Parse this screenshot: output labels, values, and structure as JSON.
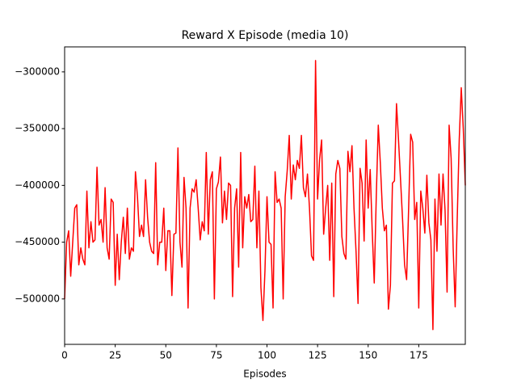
{
  "chart_data": {
    "type": "line",
    "title": "Reward X Episode (media 10)",
    "x_label": "Episodes",
    "color": "#ff0000",
    "x": [
      0,
      1,
      2,
      3,
      4,
      5,
      6,
      7,
      8,
      9,
      10,
      11,
      12,
      13,
      14,
      15,
      16,
      17,
      18,
      19,
      20,
      21,
      22,
      23,
      24,
      25,
      26,
      27,
      28,
      29,
      30,
      31,
      32,
      33,
      34,
      35,
      36,
      37,
      38,
      39,
      40,
      41,
      42,
      43,
      44,
      45,
      46,
      47,
      48,
      49,
      50,
      51,
      52,
      53,
      54,
      55,
      56,
      57,
      58,
      59,
      60,
      61,
      62,
      63,
      64,
      65,
      66,
      67,
      68,
      69,
      70,
      71,
      72,
      73,
      74,
      75,
      76,
      77,
      78,
      79,
      80,
      81,
      82,
      83,
      84,
      85,
      86,
      87,
      88,
      89,
      90,
      91,
      92,
      93,
      94,
      95,
      96,
      97,
      98,
      99,
      100,
      101,
      102,
      103,
      104,
      105,
      106,
      107,
      108,
      109,
      110,
      111,
      112,
      113,
      114,
      115,
      116,
      117,
      118,
      119,
      120,
      121,
      122,
      123,
      124,
      125,
      126,
      127,
      128,
      129,
      130,
      131,
      132,
      133,
      134,
      135,
      136,
      137,
      138,
      139,
      140,
      141,
      142,
      143,
      144,
      145,
      146,
      147,
      148,
      149,
      150,
      151,
      152,
      153,
      154,
      155,
      156,
      157,
      158,
      159,
      160,
      161,
      162,
      163,
      164,
      165,
      166,
      167,
      168,
      169,
      170,
      171,
      172,
      173,
      174,
      175,
      176,
      177,
      178,
      179,
      180,
      181,
      182,
      183,
      184,
      185,
      186,
      187,
      188,
      189,
      190,
      191,
      192,
      193,
      194,
      195,
      196,
      197,
      198
    ],
    "values": [
      -500000,
      -450000,
      -440000,
      -480000,
      -450000,
      -420000,
      -417000,
      -470000,
      -455000,
      -465000,
      -470000,
      -405000,
      -455000,
      -432000,
      -450000,
      -448000,
      -384000,
      -435000,
      -430000,
      -450000,
      -402000,
      -455000,
      -465000,
      -412000,
      -415000,
      -488000,
      -443000,
      -483000,
      -450000,
      -428000,
      -460000,
      -420000,
      -465000,
      -455000,
      -458000,
      -388000,
      -410000,
      -445000,
      -435000,
      -445000,
      -395000,
      -428000,
      -450000,
      -458000,
      -460000,
      -380000,
      -470000,
      -450000,
      -450000,
      -420000,
      -475000,
      -440000,
      -440000,
      -497000,
      -443000,
      -442000,
      -367000,
      -450000,
      -472000,
      -393000,
      -420000,
      -508000,
      -420000,
      -403000,
      -406000,
      -395000,
      -420000,
      -448000,
      -432000,
      -440000,
      -371000,
      -443000,
      -395000,
      -388000,
      -500000,
      -403000,
      -397000,
      -375000,
      -433000,
      -405000,
      -430000,
      -398000,
      -400000,
      -498000,
      -420000,
      -403000,
      -472000,
      -371000,
      -455000,
      -410000,
      -420000,
      -408000,
      -432000,
      -430000,
      -383000,
      -455000,
      -405000,
      -490000,
      -519000,
      -475000,
      -410000,
      -450000,
      -452000,
      -508000,
      -388000,
      -415000,
      -412000,
      -420000,
      -500000,
      -410000,
      -387000,
      -356000,
      -412000,
      -382000,
      -395000,
      -378000,
      -385000,
      -356000,
      -402000,
      -410000,
      -390000,
      -420000,
      -462000,
      -466000,
      -290000,
      -412000,
      -377000,
      -360000,
      -443000,
      -420000,
      -400000,
      -466000,
      -398000,
      -498000,
      -390000,
      -378000,
      -385000,
      -445000,
      -460000,
      -465000,
      -370000,
      -388000,
      -365000,
      -420000,
      -458000,
      -504000,
      -385000,
      -398000,
      -449000,
      -360000,
      -420000,
      -386000,
      -440000,
      -486000,
      -410000,
      -347000,
      -380000,
      -420000,
      -440000,
      -435000,
      -509000,
      -488000,
      -398000,
      -396000,
      -328000,
      -360000,
      -395000,
      -430000,
      -470000,
      -483000,
      -420000,
      -355000,
      -362000,
      -430000,
      -415000,
      -508000,
      -405000,
      -420000,
      -442000,
      -391000,
      -433000,
      -448000,
      -527000,
      -412000,
      -458000,
      -390000,
      -435000,
      -390000,
      -422000,
      -494000,
      -347000,
      -376000,
      -455000,
      -507000,
      -430000,
      -360000,
      -314000,
      -350000,
      -400000
    ],
    "xlim": [
      0,
      198
    ],
    "xticks": [
      0,
      25,
      50,
      75,
      100,
      125,
      150,
      175
    ],
    "ylim": [
      -540000,
      -278000
    ],
    "yticks": [
      {
        "value": -500000,
        "label": "−500000"
      },
      {
        "value": -450000,
        "label": "−450000"
      },
      {
        "value": -400000,
        "label": "−400000"
      },
      {
        "value": -350000,
        "label": "−350000"
      },
      {
        "value": -300000,
        "label": "−300000"
      }
    ]
  }
}
